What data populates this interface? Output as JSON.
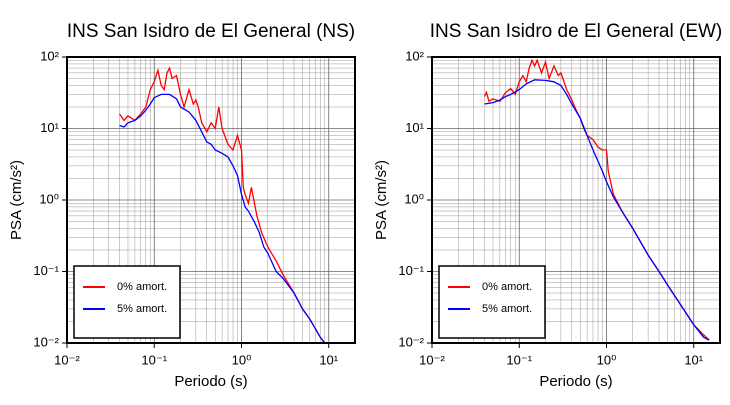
{
  "chart_data": [
    {
      "type": "line",
      "title": "INS San Isidro de El General (NS)",
      "xlabel": "Periodo (s)",
      "ylabel": "PSA (cm/s²)",
      "xscale": "log",
      "yscale": "log",
      "grid": true,
      "minor_grid": true,
      "legend": "lower left",
      "xlim": [
        0.01,
        20
      ],
      "ylim": [
        0.01,
        100
      ],
      "xticks": [
        {
          "value": 0.01,
          "label": "10⁻²"
        },
        {
          "value": 0.1,
          "label": "10⁻¹"
        },
        {
          "value": 1,
          "label": "10⁰"
        },
        {
          "value": 10,
          "label": "10¹"
        }
      ],
      "yticks": [
        {
          "value": 0.01,
          "label": "10⁻²"
        },
        {
          "value": 0.1,
          "label": "10⁻¹"
        },
        {
          "value": 1,
          "label": "10⁰"
        },
        {
          "value": 10,
          "label": "10¹"
        },
        {
          "value": 100,
          "label": "10²"
        }
      ],
      "series": [
        {
          "name": "0% amort.",
          "color": "#ff0000",
          "x": [
            0.04,
            0.045,
            0.05,
            0.06,
            0.07,
            0.08,
            0.09,
            0.1,
            0.11,
            0.12,
            0.13,
            0.14,
            0.15,
            0.16,
            0.18,
            0.2,
            0.22,
            0.25,
            0.28,
            0.3,
            0.32,
            0.35,
            0.4,
            0.45,
            0.5,
            0.55,
            0.6,
            0.7,
            0.8,
            0.9,
            1.0,
            1.05,
            1.1,
            1.2,
            1.3,
            1.5,
            1.7,
            2,
            2.5,
            3,
            4,
            5,
            6,
            7,
            8,
            9
          ],
          "values": [
            16,
            13,
            15,
            13,
            16,
            20,
            35,
            45,
            65,
            40,
            35,
            60,
            70,
            50,
            55,
            30,
            20,
            35,
            22,
            25,
            20,
            12,
            9,
            12,
            10,
            20,
            10,
            6,
            5,
            8,
            5,
            1.5,
            1.2,
            0.9,
            1.5,
            0.6,
            0.35,
            0.22,
            0.14,
            0.09,
            0.05,
            0.03,
            0.022,
            0.016,
            0.012,
            0.01
          ]
        },
        {
          "name": "5% amort.",
          "color": "#0000ff",
          "x": [
            0.04,
            0.045,
            0.05,
            0.06,
            0.07,
            0.08,
            0.09,
            0.1,
            0.12,
            0.15,
            0.18,
            0.2,
            0.25,
            0.3,
            0.35,
            0.4,
            0.45,
            0.5,
            0.6,
            0.7,
            0.8,
            0.9,
            1.0,
            1.1,
            1.2,
            1.4,
            1.6,
            1.8,
            2,
            2.5,
            3,
            4,
            5,
            6,
            7,
            8,
            9
          ],
          "values": [
            11,
            10.5,
            12,
            13,
            15,
            18,
            22,
            27,
            30,
            30,
            26,
            20,
            17,
            13,
            9,
            6.5,
            6,
            5,
            4.5,
            4,
            3,
            2.2,
            1.2,
            0.8,
            0.7,
            0.5,
            0.35,
            0.22,
            0.18,
            0.1,
            0.08,
            0.05,
            0.03,
            0.022,
            0.016,
            0.012,
            0.01
          ]
        }
      ]
    },
    {
      "type": "line",
      "title": "INS San Isidro de El General (EW)",
      "xlabel": "Periodo (s)",
      "ylabel": "PSA (cm/s²)",
      "xscale": "log",
      "yscale": "log",
      "grid": true,
      "minor_grid": true,
      "legend": "lower left",
      "xlim": [
        0.01,
        20
      ],
      "ylim": [
        0.01,
        100
      ],
      "xticks": [
        {
          "value": 0.01,
          "label": "10⁻²"
        },
        {
          "value": 0.1,
          "label": "10⁻¹"
        },
        {
          "value": 1,
          "label": "10⁰"
        },
        {
          "value": 10,
          "label": "10¹"
        }
      ],
      "yticks": [
        {
          "value": 0.01,
          "label": "10⁻²"
        },
        {
          "value": 0.1,
          "label": "10⁻¹"
        },
        {
          "value": 1,
          "label": "10⁰"
        },
        {
          "value": 10,
          "label": "10¹"
        },
        {
          "value": 100,
          "label": "10²"
        }
      ],
      "series": [
        {
          "name": "0% amort.",
          "color": "#ff0000",
          "x": [
            0.04,
            0.042,
            0.045,
            0.05,
            0.06,
            0.07,
            0.08,
            0.09,
            0.1,
            0.11,
            0.12,
            0.13,
            0.14,
            0.15,
            0.16,
            0.18,
            0.2,
            0.22,
            0.25,
            0.28,
            0.3,
            0.35,
            0.4,
            0.45,
            0.5,
            0.55,
            0.6,
            0.7,
            0.8,
            0.9,
            1.0,
            1.05,
            1.2,
            1.5,
            2,
            3,
            4,
            5,
            7,
            10,
            13,
            15
          ],
          "values": [
            28,
            32,
            24,
            26,
            24,
            32,
            36,
            30,
            45,
            55,
            45,
            70,
            90,
            75,
            90,
            60,
            85,
            50,
            75,
            55,
            60,
            35,
            25,
            18,
            14,
            10,
            8,
            7,
            5.5,
            5,
            5,
            2.5,
            1.2,
            0.7,
            0.4,
            0.17,
            0.1,
            0.065,
            0.035,
            0.018,
            0.013,
            0.011
          ]
        },
        {
          "name": "5% amort.",
          "color": "#0000ff",
          "x": [
            0.04,
            0.05,
            0.06,
            0.07,
            0.08,
            0.1,
            0.12,
            0.15,
            0.2,
            0.25,
            0.3,
            0.35,
            0.4,
            0.5,
            0.6,
            0.7,
            0.8,
            0.9,
            1,
            1.2,
            1.5,
            2,
            3,
            4,
            5,
            7,
            10,
            13,
            15
          ],
          "values": [
            22,
            23,
            25,
            28,
            30,
            35,
            42,
            48,
            47,
            45,
            40,
            30,
            22,
            14,
            8,
            5,
            3.5,
            2.5,
            1.8,
            1.1,
            0.7,
            0.4,
            0.17,
            0.1,
            0.065,
            0.035,
            0.018,
            0.012,
            0.011
          ]
        }
      ]
    }
  ]
}
